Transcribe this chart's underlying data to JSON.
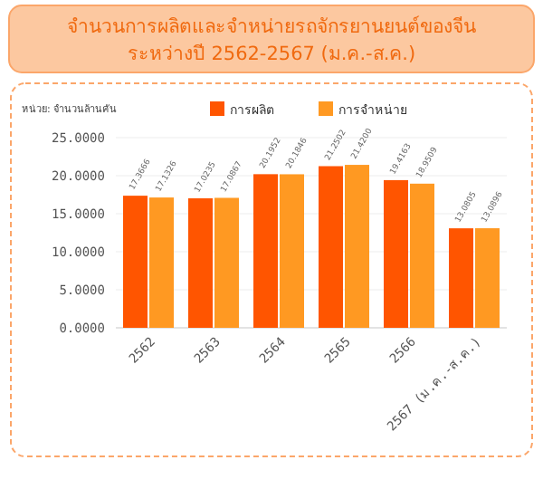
{
  "chart_data": {
    "type": "bar",
    "title": "จำนวนการผลิตและจำหน่ายรถจักรยานยนต์ของจีน",
    "subtitle": "ระหว่างปี 2562-2567 (ม.ค.-ส.ค.)",
    "ylabel": "หน่วย: จำนวนล้านคัน",
    "categories": [
      "2562",
      "2563",
      "2564",
      "2565",
      "2566",
      "2567 (ม.ค.-ส.ค.)"
    ],
    "series": [
      {
        "name": "การผลิต",
        "color": "#ff5500",
        "values": [
          17.3666,
          17.0235,
          20.1952,
          21.2502,
          19.4163,
          13.0805
        ],
        "value_labels": [
          "17.3666",
          "17.0235",
          "20.1952",
          "21.2502",
          "19.4163",
          "13.0805"
        ]
      },
      {
        "name": "การจำหน่าย",
        "color": "#ff9922",
        "values": [
          17.1326,
          17.0867,
          20.1846,
          21.42,
          18.9509,
          13.0896
        ],
        "value_labels": [
          "17.1326",
          "17.0867",
          "20.1846",
          "21.4200",
          "18.9509",
          "13.0896"
        ]
      }
    ],
    "ylim": [
      0,
      25
    ],
    "yticks": [
      {
        "value": 0,
        "label": "0.0000"
      },
      {
        "value": 5,
        "label": "5.0000"
      },
      {
        "value": 10,
        "label": "10.0000"
      },
      {
        "value": 15,
        "label": "15.0000"
      },
      {
        "value": 20,
        "label": "20.0000"
      },
      {
        "value": 25,
        "label": "25.0000"
      }
    ],
    "grid": "y",
    "legend": "top"
  }
}
